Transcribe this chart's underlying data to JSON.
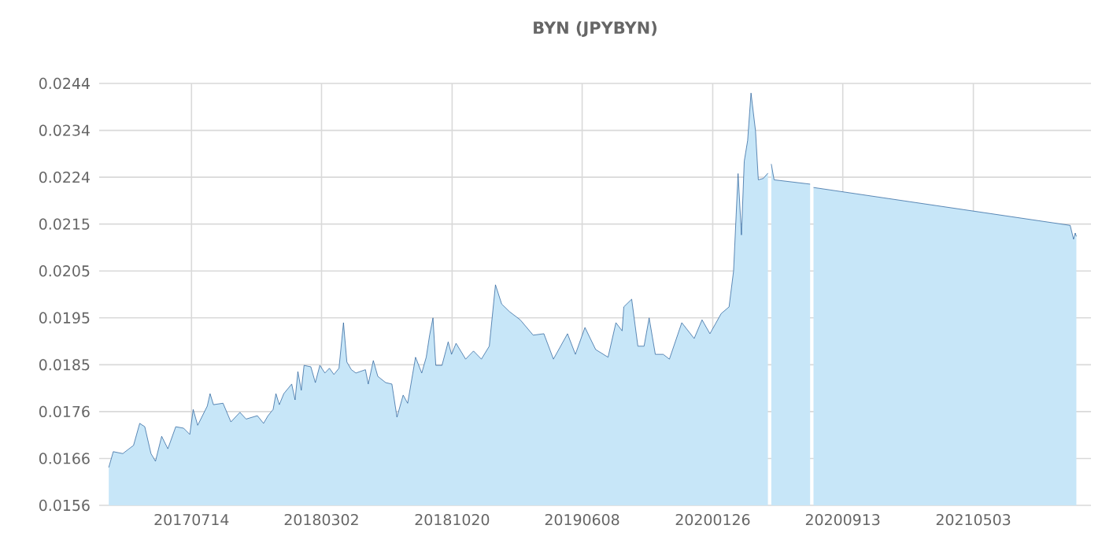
{
  "chart_data": {
    "type": "area",
    "title": "BYN (JPYBYN)",
    "color": "#1f5a96",
    "grid": true,
    "xlim": [
      "2017-01-31",
      "2021-11-28"
    ],
    "ylim": [
      0.0156,
      0.0244
    ],
    "xticks": [
      {
        "value": "2017-07-14",
        "label": "20170714"
      },
      {
        "value": "2018-03-02",
        "label": "20180302"
      },
      {
        "value": "2018-10-20",
        "label": "20181020"
      },
      {
        "value": "2019-06-08",
        "label": "20190608"
      },
      {
        "value": "2020-01-26",
        "label": "20200126"
      },
      {
        "value": "2020-09-13",
        "label": "20200913"
      },
      {
        "value": "2021-05-03",
        "label": "20210503"
      }
    ],
    "yticks": [
      {
        "value": 0.0156,
        "label": "0.0156"
      },
      {
        "value": 0.016578,
        "label": "0.0166"
      },
      {
        "value": 0.017556,
        "label": "0.0176"
      },
      {
        "value": 0.018533,
        "label": "0.0185"
      },
      {
        "value": 0.019511,
        "label": "0.0195"
      },
      {
        "value": 0.020489,
        "label": "0.0205"
      },
      {
        "value": 0.021467,
        "label": "0.0215"
      },
      {
        "value": 0.022444,
        "label": "0.0224"
      },
      {
        "value": 0.023422,
        "label": "0.0234"
      },
      {
        "value": 0.0244,
        "label": "0.0244"
      }
    ],
    "x": [
      "2017-02-17",
      "2017-02-25",
      "2017-03-14",
      "2017-03-25",
      "2017-04-02",
      "2017-04-13",
      "2017-04-22",
      "2017-05-03",
      "2017-05-11",
      "2017-05-22",
      "2017-06-02",
      "2017-06-16",
      "2017-06-30",
      "2017-07-11",
      "2017-07-17",
      "2017-07-25",
      "2017-08-11",
      "2017-08-16",
      "2017-08-22",
      "2017-09-08",
      "2017-09-22",
      "2017-10-08",
      "2017-10-19",
      "2017-11-08",
      "2017-11-19",
      "2017-11-27",
      "2017-12-06",
      "2017-12-11",
      "2017-12-17",
      "2017-12-25",
      "2018-01-08",
      "2018-01-14",
      "2018-01-19",
      "2018-01-25",
      "2018-01-30",
      "2018-02-11",
      "2018-02-19",
      "2018-02-27",
      "2018-03-08",
      "2018-03-16",
      "2018-03-24",
      "2018-04-02",
      "2018-04-10",
      "2018-04-16",
      "2018-04-24",
      "2018-05-02",
      "2018-05-19",
      "2018-05-24",
      "2018-06-02",
      "2018-06-10",
      "2018-06-24",
      "2018-07-05",
      "2018-07-14",
      "2018-07-25",
      "2018-08-02",
      "2018-08-16",
      "2018-08-27",
      "2018-09-04",
      "2018-09-10",
      "2018-09-16",
      "2018-09-21",
      "2018-10-02",
      "2018-10-13",
      "2018-10-19",
      "2018-10-27",
      "2018-11-13",
      "2018-11-27",
      "2018-12-11",
      "2018-12-25",
      "2019-01-05",
      "2019-01-16",
      "2019-01-30",
      "2019-02-18",
      "2019-03-13",
      "2019-04-01",
      "2019-04-18",
      "2019-05-13",
      "2019-05-27",
      "2019-06-13",
      "2019-07-02",
      "2019-07-24",
      "2019-08-07",
      "2019-08-18",
      "2019-08-21",
      "2019-09-04",
      "2019-09-15",
      "2019-09-26",
      "2019-10-05",
      "2019-10-16",
      "2019-10-30",
      "2019-11-10",
      "2019-12-02",
      "2019-12-24",
      "2020-01-07",
      "2020-01-21",
      "2020-02-10",
      "2020-02-24",
      "2020-03-03",
      "2020-03-11",
      "2020-03-17",
      "2020-03-22",
      "2020-03-28",
      "2020-04-03",
      "2020-04-11",
      "2020-04-16",
      "2020-04-25",
      "2020-05-03",
      "2020-05-06",
      "2020-05-09",
      "2020-05-14",
      "2020-07-17",
      "2020-07-20",
      "2020-07-23",
      "2021-10-22",
      "2021-10-28",
      "2021-10-31",
      "2021-11-02"
    ],
    "values": [
      0.01639,
      0.01672,
      0.01668,
      0.01678,
      0.01685,
      0.01731,
      0.01724,
      0.01668,
      0.01652,
      0.01704,
      0.01678,
      0.01724,
      0.01721,
      0.01708,
      0.0176,
      0.01727,
      0.01767,
      0.01793,
      0.0177,
      0.01773,
      0.01734,
      0.01754,
      0.0174,
      0.01747,
      0.01731,
      0.01747,
      0.0176,
      0.01793,
      0.0177,
      0.01793,
      0.01813,
      0.0178,
      0.01839,
      0.018,
      0.01852,
      0.01849,
      0.01816,
      0.01852,
      0.01836,
      0.01846,
      0.01833,
      0.01846,
      0.01941,
      0.01859,
      0.01843,
      0.01836,
      0.01843,
      0.01813,
      0.01862,
      0.01829,
      0.01816,
      0.01813,
      0.01744,
      0.0179,
      0.01773,
      0.01869,
      0.01836,
      0.01869,
      0.01915,
      0.01951,
      0.01852,
      0.01852,
      0.01901,
      0.01875,
      0.01898,
      0.01865,
      0.01882,
      0.01865,
      0.01892,
      0.0202,
      0.0198,
      0.01964,
      0.01947,
      0.01915,
      0.01918,
      0.01865,
      0.01918,
      0.01875,
      0.01931,
      0.01885,
      0.01869,
      0.01941,
      0.01924,
      0.01974,
      0.0199,
      0.01892,
      0.01892,
      0.01951,
      0.01875,
      0.01875,
      0.01865,
      0.01941,
      0.01908,
      0.01947,
      0.01918,
      0.0196,
      0.01974,
      0.02049,
      0.02252,
      0.02124,
      0.02278,
      0.02321,
      0.0242,
      0.02341,
      0.02239,
      0.02242,
      0.02253,
      null,
      0.02272,
      0.02239,
      0.0223,
      null,
      0.02223,
      0.02144,
      0.02115,
      0.02128,
      0.02121
    ]
  }
}
